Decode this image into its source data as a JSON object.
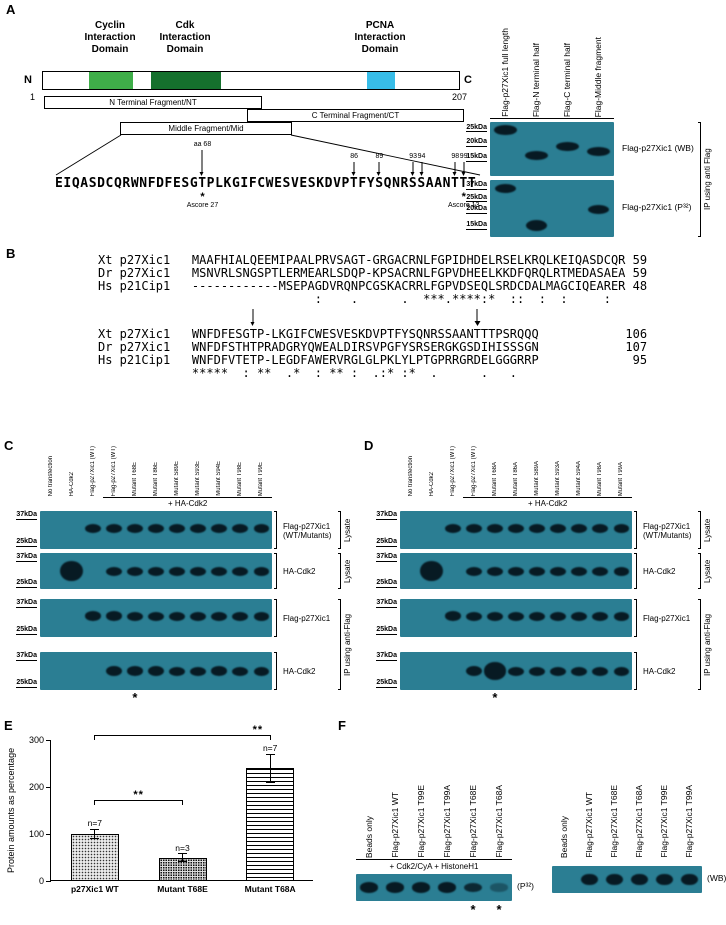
{
  "colors": {
    "blot_bg": "#2b7e93",
    "band": "#071a23",
    "cyclin_green": "#3fae49",
    "cdk_green": "#15702d",
    "pcna_blue": "#38bde8"
  },
  "panelA": {
    "label": "A",
    "nterm": "N",
    "cterm": "C",
    "res_start": "1",
    "res_end": "207",
    "domain_labels": [
      [
        "Cyclin",
        "Interaction",
        "Domain"
      ],
      [
        "Cdk",
        "Interaction",
        "Domain"
      ],
      [
        "PCNA",
        "Interaction",
        "Domain"
      ]
    ],
    "fragments": [
      "N Terminal Fragment/NT",
      "C Terminal Fragment/CT",
      "Middle Fragment/Mid"
    ],
    "sequence": "EIQASDCQRWNFDFESGTPLKGIFCWESVESKDVPTFYSQNRSSAANTTT",
    "seq_annotations": {
      "aa68": {
        "text": "aa 68",
        "index": 17
      },
      "sites": [
        {
          "text": "86",
          "index": 35
        },
        {
          "text": "89",
          "index": 38
        },
        {
          "text": "93",
          "index": 42
        },
        {
          "text": "94",
          "index": 43
        },
        {
          "text": "98",
          "index": 47
        },
        {
          "text": "99",
          "index": 48
        }
      ],
      "ascores": [
        {
          "star": "*",
          "text": "Ascore 27",
          "index": 17
        },
        {
          "star": "*",
          "text": "Ascore 13",
          "index": 48
        }
      ]
    },
    "blot": {
      "lanes": [
        "Flag-p27Xic1 full length",
        "Flag-N terminal half",
        "Flag-C terminal half",
        "Flag-Middle fragment"
      ],
      "strips": [
        {
          "caption": "Flag-p27Xic1 (WB)",
          "markers": [
            {
              "t": "25kDa",
              "y": 0.03
            },
            {
              "t": "20kDa",
              "y": 0.3
            },
            {
              "t": "15kDa",
              "y": 0.58
            }
          ],
          "bands": [
            {
              "l": 0,
              "y": 0.14,
              "h": 1.1
            },
            {
              "l": 1,
              "y": 0.62
            },
            {
              "l": 2,
              "y": 0.46
            },
            {
              "l": 3,
              "y": 0.54
            }
          ]
        },
        {
          "caption": "Flag-p27Xic1 (P³²)",
          "markers": [
            {
              "t": "37kDa",
              "y": 0.02
            },
            {
              "t": "25kDa",
              "y": 0.24
            },
            {
              "t": "20kDa",
              "y": 0.44
            },
            {
              "t": "15kDa",
              "y": 0.72
            }
          ],
          "bands": [
            {
              "l": 0,
              "y": 0.15,
              "w": 0.9
            },
            {
              "l": 1,
              "y": 0.8,
              "w": 0.9,
              "h": 1.2
            },
            {
              "l": 3,
              "y": 0.52,
              "w": 0.9
            }
          ]
        }
      ],
      "side_label": "IP using anti Flag"
    }
  },
  "panelB": {
    "label": "B",
    "lines1": [
      "Xt p27Xic1   MAAFHIALQEEMIPAALPRVSAGT-GRGACRNLFGPIDHDELRSELKRQLKEIQASDCQR 59",
      "Dr p27Xic1   MSNVRLSNGSPTLERMEARLSDQP-KPSACRNLFGPVDHEELKKDFQRQLRTMEDASAEA 59",
      "Hs p21Cip1   ------------MSEPAGDVRQNPCGSKACRRLFGPVDSEQLSRDCDALMAGCIQEARER 48",
      "                              :    .      .  ***.****:*  ::  :  :     :  "
    ],
    "arrows": [
      {
        "col": 21,
        "bold": false
      },
      {
        "col": 52,
        "bold": true
      }
    ],
    "lines2": [
      "Xt p27Xic1   WNFDFESGTP-LKGIFCWESVESKDVPTFYSQNRSSAANTTTPSRQQQ            106",
      "Dr p27Xic1   WNFDFSTHTPRADGRYQWEALDIRSVPGFYSRSERGKGSDIHISSSGN            107",
      "Hs p21Cip1   WNFDFVTETP-LEGDFAWERVRGLGLPKLYLPTGPRRGRDELGGGRRP             95",
      "             *****  : **  .*  : ** :  .:* :*  .      .   .  "
    ]
  },
  "panelC": {
    "label": "C",
    "lanes": [
      "No transfection",
      "HA-Cdk2",
      "Flag-p27Xic1 (WT)",
      "Flag-p27Xic1 (WT)",
      "Mutant T68E",
      "Mutant T86E",
      "Mutant S89E",
      "Mutant S93E",
      "Mutant S94E",
      "Mutant T98E",
      "Mutant T99E"
    ],
    "group_label": "+ HA-Cdk2",
    "group_start": 3,
    "asterisk": "*",
    "asterisk_lanes": [
      4
    ],
    "side_labels": [
      "Lysate",
      "Lysate",
      "IP using anti-Flag"
    ],
    "strips": [
      {
        "caption": [
          "Flag-p27Xic1",
          "(WT/Mutants)"
        ],
        "markers": [
          {
            "t": "37kDa",
            "y": 0.0
          },
          {
            "t": "25kDa",
            "y": 0.72
          }
        ],
        "bands": [
          {
            "l": 2,
            "w": 1.0
          },
          {
            "l": 3
          },
          {
            "l": 4
          },
          {
            "l": 5
          },
          {
            "l": 6
          },
          {
            "l": 7
          },
          {
            "l": 8
          },
          {
            "l": 9
          },
          {
            "l": 10
          }
        ]
      },
      {
        "caption": [
          "HA-Cdk2"
        ],
        "markers": [
          {
            "t": "37kDa",
            "y": 0.0
          },
          {
            "t": "25kDa",
            "y": 0.72
          }
        ],
        "bands": [
          {
            "l": 1,
            "w": 1.45,
            "h": 2.3,
            "y": 0.5
          },
          {
            "l": 3,
            "y": 0.5
          },
          {
            "l": 4,
            "y": 0.5
          },
          {
            "l": 5,
            "y": 0.5
          },
          {
            "l": 6,
            "y": 0.5
          },
          {
            "l": 7,
            "y": 0.5
          },
          {
            "l": 8,
            "y": 0.5
          },
          {
            "l": 9,
            "y": 0.5
          },
          {
            "l": 10,
            "y": 0.5
          }
        ]
      },
      {
        "caption": [
          "Flag-p27Xic1"
        ],
        "markers": [
          {
            "t": "37kDa",
            "y": 0.0
          },
          {
            "t": "25kDa",
            "y": 0.72
          }
        ],
        "bands": [
          {
            "l": 2,
            "h": 1.05
          },
          {
            "l": 3,
            "h": 1.05
          },
          {
            "l": 4
          },
          {
            "l": 5
          },
          {
            "l": 6
          },
          {
            "l": 7
          },
          {
            "l": 8
          },
          {
            "l": 9
          },
          {
            "l": 10
          }
        ]
      },
      {
        "caption": [
          "HA-Cdk2"
        ],
        "markers": [
          {
            "t": "37kDa",
            "y": 0.0
          },
          {
            "t": "25kDa",
            "y": 0.72
          }
        ],
        "bands": [
          {
            "l": 3,
            "w": 1.05,
            "h": 1.2,
            "y": 0.5
          },
          {
            "l": 4,
            "h": 1.05,
            "y": 0.5
          },
          {
            "l": 5,
            "h": 1.1,
            "y": 0.5
          },
          {
            "l": 6,
            "y": 0.5
          },
          {
            "l": 7,
            "y": 0.5
          },
          {
            "l": 8,
            "h": 1.05,
            "y": 0.5
          },
          {
            "l": 9,
            "y": 0.5
          },
          {
            "l": 10,
            "w": 0.9,
            "y": 0.5
          }
        ]
      }
    ]
  },
  "panelD": {
    "label": "D",
    "lanes": [
      "No transfection",
      "HA-Cdk2",
      "Flag-p27Xic1 (WT)",
      "Flag-p27Xic1 (WT)",
      "Mutant T68A",
      "Mutant T86A",
      "Mutant S89A",
      "Mutant S93A",
      "Mutant S94A",
      "Mutant T98A",
      "Mutant T99A"
    ],
    "group_label": "+ HA-Cdk2",
    "group_start": 3,
    "asterisk": "*",
    "asterisk_lanes": [
      4
    ],
    "side_labels": [
      "Lysate",
      "Lysate",
      "IP using anti-Flag"
    ],
    "strips": [
      {
        "caption": [
          "Flag-p27Xic1",
          "(WT/Mutants)"
        ],
        "markers": [
          {
            "t": "37kDa",
            "y": 0.0
          },
          {
            "t": "25kDa",
            "y": 0.72
          }
        ],
        "bands": [
          {
            "l": 2
          },
          {
            "l": 3
          },
          {
            "l": 4
          },
          {
            "l": 5
          },
          {
            "l": 6
          },
          {
            "l": 7
          },
          {
            "l": 8
          },
          {
            "l": 9
          },
          {
            "l": 10
          }
        ]
      },
      {
        "caption": [
          "HA-Cdk2"
        ],
        "markers": [
          {
            "t": "37kDa",
            "y": 0.0
          },
          {
            "t": "25kDa",
            "y": 0.72
          }
        ],
        "bands": [
          {
            "l": 1,
            "w": 1.45,
            "h": 2.3,
            "y": 0.5
          },
          {
            "l": 3,
            "y": 0.5
          },
          {
            "l": 4,
            "y": 0.5
          },
          {
            "l": 5,
            "y": 0.5
          },
          {
            "l": 6,
            "y": 0.5
          },
          {
            "l": 7,
            "y": 0.5
          },
          {
            "l": 8,
            "y": 0.5
          },
          {
            "l": 9,
            "y": 0.5
          },
          {
            "l": 10,
            "y": 0.5
          }
        ]
      },
      {
        "caption": [
          "Flag-p27Xic1"
        ],
        "markers": [
          {
            "t": "37kDa",
            "y": 0.0
          },
          {
            "t": "25kDa",
            "y": 0.72
          }
        ],
        "bands": [
          {
            "l": 2,
            "h": 1.05
          },
          {
            "l": 3
          },
          {
            "l": 4
          },
          {
            "l": 5
          },
          {
            "l": 6
          },
          {
            "l": 7
          },
          {
            "l": 8
          },
          {
            "l": 9
          },
          {
            "l": 10
          }
        ]
      },
      {
        "caption": [
          "HA-Cdk2"
        ],
        "markers": [
          {
            "t": "37kDa",
            "y": 0.0
          },
          {
            "t": "25kDa",
            "y": 0.72
          }
        ],
        "bands": [
          {
            "l": 3,
            "h": 1.1,
            "y": 0.5
          },
          {
            "l": 4,
            "w": 1.35,
            "h": 1.9,
            "y": 0.5
          },
          {
            "l": 5,
            "y": 0.5
          },
          {
            "l": 6,
            "y": 0.5
          },
          {
            "l": 7,
            "y": 0.5
          },
          {
            "l": 8,
            "y": 0.5
          },
          {
            "l": 9,
            "y": 0.5
          },
          {
            "l": 10,
            "w": 0.9,
            "y": 0.5
          }
        ]
      }
    ]
  },
  "panelE": {
    "label": "E",
    "chart_data": {
      "type": "bar",
      "categories": [
        "p27Xic1 WT",
        "Mutant T68E",
        "Mutant T68A"
      ],
      "values": [
        100,
        50,
        240
      ],
      "errors": [
        10,
        8,
        30
      ],
      "n_labels": [
        "n=7",
        "n=3",
        "n=7"
      ],
      "patterns": [
        "dots",
        "dots2",
        "hlines"
      ],
      "title": "",
      "xlabel": "",
      "ylabel": "Protein amounts as percentage",
      "ylim": [
        0,
        300
      ],
      "yticks": [
        0,
        100,
        200,
        300
      ],
      "grid": false,
      "significance": [
        {
          "from": 0,
          "to": 1,
          "label": "**",
          "y_value": 172,
          "label_x": 0.5
        },
        {
          "from": 0,
          "to": 2,
          "label": "**",
          "y_value": 310,
          "label_x": 0.93
        }
      ]
    }
  },
  "panelF": {
    "label": "F",
    "left": {
      "lanes": [
        "Beads only",
        "Flag-p27Xic1 WT",
        "Flag-p27Xic1 T99E",
        "Flag-p27Xic1 T99A",
        "Flag-p27Xic1 T68E",
        "Flag-p27Xic1 T68A"
      ],
      "condition": "+ Cdk2/CyA + HistoneH1",
      "tag": "(P³²)",
      "asterisk": "*",
      "asterisk_lanes": [
        4,
        5
      ],
      "strip": {
        "bands": [
          {
            "l": 0,
            "y": 0.5,
            "w": 0.95,
            "h": 1.15
          },
          {
            "l": 1,
            "y": 0.5,
            "w": 0.95,
            "h": 1.15
          },
          {
            "l": 2,
            "y": 0.5,
            "w": 0.95,
            "h": 1.15
          },
          {
            "l": 3,
            "y": 0.5,
            "w": 0.95,
            "h": 1.15
          },
          {
            "l": 4,
            "y": 0.5,
            "w": 0.95,
            "h": 1.1,
            "o": 0.85
          },
          {
            "l": 5,
            "y": 0.5,
            "w": 0.9,
            "h": 0.9,
            "o": 0.4
          }
        ]
      }
    },
    "right": {
      "lanes": [
        "Beads only",
        "Flag-p27Xic1 WT",
        "Flag-p27Xic1 T68E",
        "Flag-p27Xic1 T68A",
        "Flag-p27Xic1 T99E",
        "Flag-p27Xic1 T99A"
      ],
      "tag": "(WB)",
      "strip": {
        "bands": [
          {
            "l": 1,
            "y": 0.5,
            "w": 0.9,
            "h": 1.3
          },
          {
            "l": 2,
            "y": 0.5,
            "w": 0.9,
            "h": 1.3
          },
          {
            "l": 3,
            "y": 0.5,
            "w": 0.9,
            "h": 1.3
          },
          {
            "l": 4,
            "y": 0.5,
            "w": 0.9,
            "h": 1.3
          },
          {
            "l": 5,
            "y": 0.5,
            "w": 0.9,
            "h": 1.3
          }
        ]
      }
    }
  }
}
